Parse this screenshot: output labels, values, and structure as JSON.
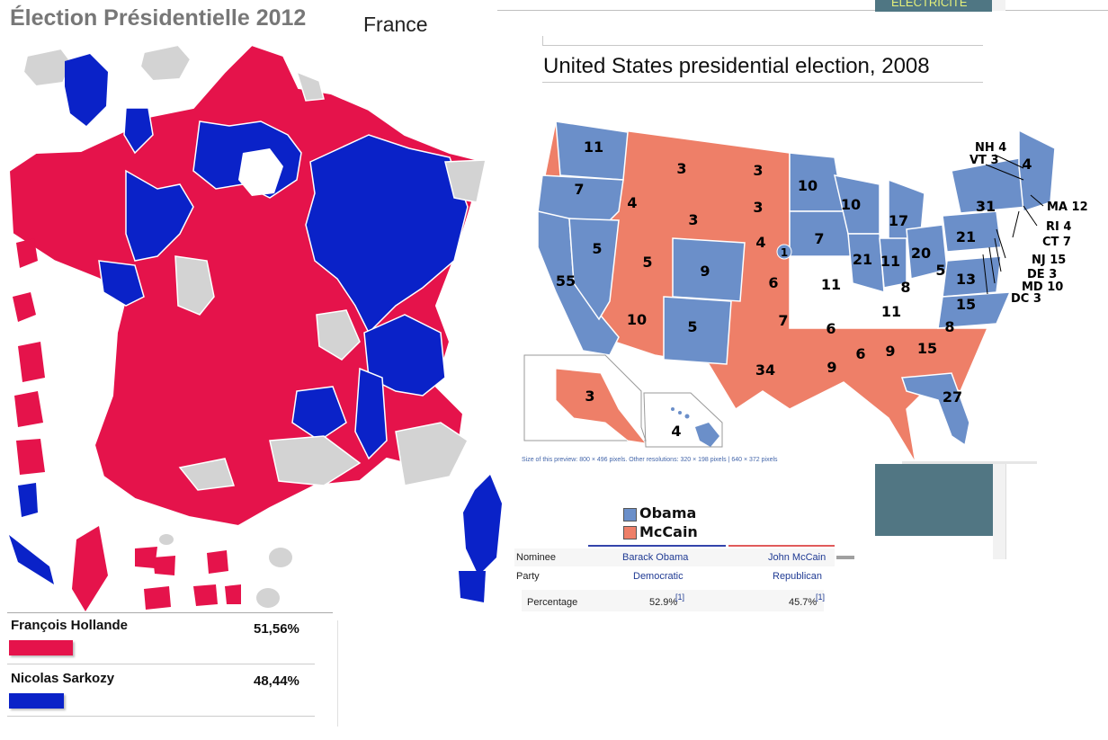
{
  "france": {
    "title": "Élection Présidentielle 2012",
    "subtitle": "France",
    "colors": {
      "hollande": "#e5134b",
      "sarkozy": "#0a22c8",
      "none": "#d3d3d3"
    },
    "candidates": [
      {
        "name": "François Hollande",
        "percent": "51,56%",
        "share": 0.5156,
        "color": "#e5134b"
      },
      {
        "name": "Nicolas Sarkozy",
        "percent": "48,44%",
        "share": 0.4844,
        "color": "#0a22c8"
      }
    ]
  },
  "usa": {
    "title": "United States presidential election, 2008",
    "caption": "Size of this preview: 800 × 496 pixels. Other resolutions: 320 × 198 pixels | 640 × 372 pixels",
    "colors": {
      "obama": "#6b8fc9",
      "mccain": "#ee7f68"
    },
    "electoral_votes": {
      "WA": "11",
      "OR": "7",
      "CA": "55",
      "NV": "5",
      "ID": "4",
      "MT": "3",
      "WY": "3",
      "UT": "5",
      "AZ": "10",
      "CO": "9",
      "NM": "5",
      "ND": "3",
      "SD": "3",
      "NE": "4",
      "NE-2": "1",
      "KS": "6",
      "OK": "7",
      "TX": "34",
      "MN": "10",
      "IA": "7",
      "MO": "11",
      "AR": "6",
      "LA": "9",
      "WI": "10",
      "IL": "21",
      "MI": "17",
      "IN": "11",
      "OH": "20",
      "KY": "8",
      "TN": "11",
      "MS": "6",
      "AL": "9",
      "GA": "15",
      "FL": "27",
      "SC": "8",
      "NC": "15",
      "VA": "13",
      "WV": "5",
      "PA": "21",
      "NY": "31",
      "ME": "4",
      "AK": "3",
      "HI": "4"
    },
    "callouts": [
      "NH 4",
      "VT 3",
      "MA 12",
      "RI 4",
      "CT 7",
      "NJ 15",
      "DE 3",
      "MD 10",
      "DC 3"
    ],
    "legend": [
      {
        "name": "Obama",
        "color": "#6b8fc9"
      },
      {
        "name": "McCain",
        "color": "#ee7f68"
      }
    ],
    "table": {
      "nominee_label": "Nominee",
      "party_label": "Party",
      "percentage_label": "Percentage",
      "ref": "[1]",
      "obama": {
        "name": "Barack Obama",
        "party": "Democratic",
        "pct": "52.9%"
      },
      "mccain": {
        "name": "John McCain",
        "party": "Republican",
        "pct": "45.7%"
      }
    }
  },
  "banner": {
    "text": "ÉLECTRICITÉ"
  }
}
